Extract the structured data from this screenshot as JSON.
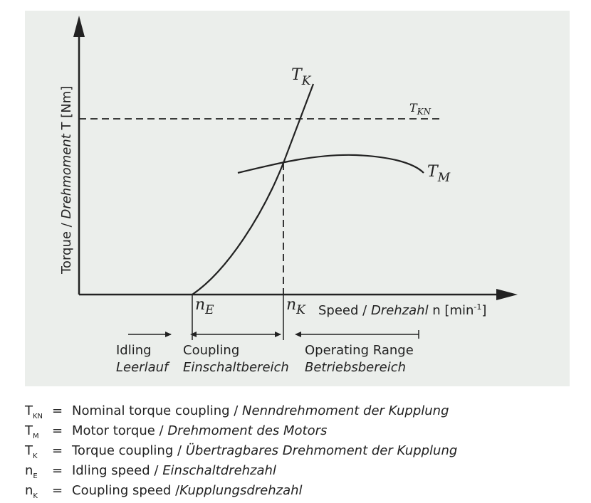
{
  "diagram": {
    "y_axis_label": {
      "text": "Torque / ",
      "italic": "Drehmoment",
      "suffix": " T [Nm]"
    },
    "x_axis_label": {
      "text": "Speed / ",
      "italic": "Drehzahl",
      "suffix": " n [min",
      "superscript": "-1",
      "end": "]"
    },
    "curve_labels": [
      {
        "symbol": "T",
        "subscript": "K"
      },
      {
        "symbol": "T",
        "subscript": "KN"
      },
      {
        "symbol": "T",
        "subscript": "M"
      }
    ],
    "speed_marks": [
      {
        "symbol": "n",
        "subscript": "E"
      },
      {
        "symbol": "n",
        "subscript": "K"
      }
    ],
    "ranges": [
      {
        "label": "Idling",
        "label_de": "Leerlauf"
      },
      {
        "label": "Coupling",
        "label_de": "Einschaltbereich"
      },
      {
        "label": "Operating Range",
        "label_de": "Betriebsbereich"
      }
    ]
  },
  "legend": [
    {
      "symbol": "T",
      "subscript": "KN",
      "equals": "=",
      "text": "Nominal torque coupling / ",
      "italic": "Nenndrehmoment der Kupplung"
    },
    {
      "symbol": "T",
      "subscript": "M",
      "equals": "=",
      "text": "Motor torque / ",
      "italic": "Drehmoment des Motors"
    },
    {
      "symbol": "T",
      "subscript": "K",
      "equals": "=",
      "text": "Torque coupling / ",
      "italic": "Übertragbares Drehmoment der Kupplung"
    },
    {
      "symbol": "n",
      "subscript": "E",
      "equals": "=",
      "text": "Idling speed / ",
      "italic": "Einschaltdrehzahl"
    },
    {
      "symbol": "n",
      "subscript": "K",
      "equals": "=",
      "text": "Coupling speed /",
      "italic": "Kupplungsdrehzahl"
    }
  ]
}
